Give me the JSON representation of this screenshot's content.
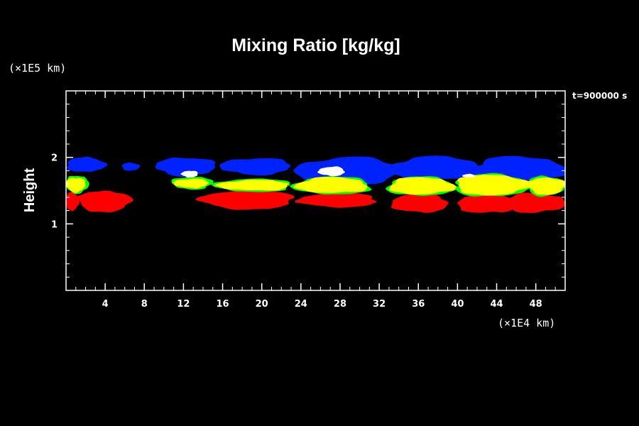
{
  "chart_data": {
    "type": "contour",
    "title": "Mixing Ratio [kg/kg]",
    "ylabel": "Height",
    "xunit": "(×1E4 km)",
    "yunit": "(×1E5 km)",
    "time_label": "t=900000 s",
    "xlim": [
      0,
      51
    ],
    "ylim": [
      0,
      3
    ],
    "xticks": [
      4,
      8,
      12,
      16,
      20,
      24,
      28,
      32,
      36,
      40,
      44,
      48
    ],
    "yticks": [
      1,
      2
    ],
    "x_minor_step": 1,
    "y_minor_step": 0.2,
    "colors": {
      "blue": "#0022ff",
      "green": "#00ff00",
      "yellow": "#ffff00",
      "red": "#ff0000",
      "white": "#ffffff"
    },
    "layers": [
      {
        "color": "blue",
        "blobs": [
          {
            "x": [
              0.0,
              4.0
            ],
            "y": [
              1.78,
              2.0
            ]
          },
          {
            "x": [
              5.7,
              7.5
            ],
            "y": [
              1.8,
              1.92
            ]
          },
          {
            "x": [
              9.2,
              15.3
            ],
            "y": [
              1.72,
              2.0
            ]
          },
          {
            "x": [
              15.8,
              23.0
            ],
            "y": [
              1.74,
              1.99
            ]
          },
          {
            "x": [
              23.5,
              34.0
            ],
            "y": [
              1.6,
              2.0
            ]
          },
          {
            "x": [
              33.0,
              42.5
            ],
            "y": [
              1.66,
              2.01
            ]
          },
          {
            "x": [
              41.5,
              51.0
            ],
            "y": [
              1.64,
              2.01
            ]
          }
        ]
      },
      {
        "color": "red",
        "blobs": [
          {
            "x": [
              0.0,
              1.3
            ],
            "y": [
              1.2,
              1.48
            ]
          },
          {
            "x": [
              1.2,
              6.6
            ],
            "y": [
              1.18,
              1.5
            ]
          },
          {
            "x": [
              13.8,
              23.3
            ],
            "y": [
              1.22,
              1.5
            ]
          },
          {
            "x": [
              23.8,
              31.8
            ],
            "y": [
              1.25,
              1.46
            ]
          },
          {
            "x": [
              33.3,
              39.0
            ],
            "y": [
              1.17,
              1.46
            ]
          },
          {
            "x": [
              40.0,
              46.2
            ],
            "y": [
              1.16,
              1.46
            ]
          },
          {
            "x": [
              44.8,
              51.0
            ],
            "y": [
              1.17,
              1.46
            ]
          }
        ]
      },
      {
        "color": "green",
        "blobs": [
          {
            "x": [
              0.0,
              2.3
            ],
            "y": [
              1.46,
              1.73
            ]
          },
          {
            "x": [
              10.8,
              15.0
            ],
            "y": [
              1.52,
              1.71
            ]
          },
          {
            "x": [
              15.2,
              23.1
            ],
            "y": [
              1.48,
              1.68
            ]
          },
          {
            "x": [
              23.3,
              31.2
            ],
            "y": [
              1.44,
              1.71
            ]
          },
          {
            "x": [
              32.8,
              39.8
            ],
            "y": [
              1.42,
              1.71
            ]
          },
          {
            "x": [
              39.6,
              47.5
            ],
            "y": [
              1.41,
              1.75
            ]
          },
          {
            "x": [
              47.0,
              51.0
            ],
            "y": [
              1.42,
              1.72
            ]
          }
        ]
      },
      {
        "color": "yellow",
        "blobs": [
          {
            "x": [
              0.0,
              2.0
            ],
            "y": [
              1.48,
              1.7
            ]
          },
          {
            "x": [
              11.0,
              14.6
            ],
            "y": [
              1.54,
              1.68
            ]
          },
          {
            "x": [
              15.5,
              22.9
            ],
            "y": [
              1.5,
              1.66
            ]
          },
          {
            "x": [
              23.5,
              30.8
            ],
            "y": [
              1.46,
              1.7
            ]
          },
          {
            "x": [
              33.0,
              39.6
            ],
            "y": [
              1.44,
              1.7
            ]
          },
          {
            "x": [
              39.8,
              47.2
            ],
            "y": [
              1.43,
              1.74
            ]
          },
          {
            "x": [
              47.2,
              51.0
            ],
            "y": [
              1.44,
              1.7
            ]
          }
        ]
      },
      {
        "color": "white",
        "blobs": [
          {
            "x": [
              11.8,
              13.5
            ],
            "y": [
              1.7,
              1.8
            ]
          },
          {
            "x": [
              25.8,
              28.5
            ],
            "y": [
              1.72,
              1.86
            ]
          },
          {
            "x": [
              40.5,
              41.8
            ],
            "y": [
              1.7,
              1.75
            ]
          }
        ]
      }
    ]
  }
}
